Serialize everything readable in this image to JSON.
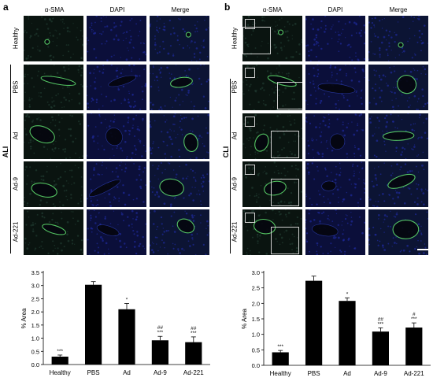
{
  "panels": [
    {
      "letter": "a",
      "columns": [
        "α-SMA",
        "DAPI",
        "Merge"
      ],
      "group_label": "ALI",
      "rows": [
        "Healthy",
        "PBS",
        "Ad",
        "Ad-9",
        "Ad-221"
      ]
    },
    {
      "letter": "b",
      "columns": [
        "α-SMA",
        "DAPI",
        "Merge"
      ],
      "group_label": "CLI",
      "rows": [
        "Healthy",
        "PBS",
        "Ad",
        "Ad-9",
        "Ad-221"
      ]
    }
  ],
  "colors": {
    "tile_dark": "#08081e",
    "dapi_blue": "#1e2a9a",
    "sma_green": "#5cd66a",
    "bar": "#000000"
  },
  "chart_data": [
    {
      "type": "bar",
      "categories": [
        "Healthy",
        "PBS",
        "Ad",
        "Ad-9",
        "Ad-221"
      ],
      "values": [
        0.3,
        3.03,
        2.1,
        0.92,
        0.85
      ],
      "errors": [
        0.06,
        0.12,
        0.22,
        0.15,
        0.2
      ],
      "annotations": [
        [
          "***"
        ],
        [],
        [
          "*"
        ],
        [
          "##",
          "***"
        ],
        [
          "##",
          "***"
        ]
      ],
      "ylabel": "% Area",
      "ylim": [
        0,
        3.5
      ],
      "yticks": [
        "0.0",
        "0.5",
        "1.0",
        "1.5",
        "2.0",
        "2.5",
        "3.0",
        "3.5"
      ]
    },
    {
      "type": "bar",
      "categories": [
        "Healthy",
        "PBS",
        "Ad",
        "Ad-9",
        "Ad-221"
      ],
      "values": [
        0.42,
        2.73,
        2.08,
        1.09,
        1.22
      ],
      "errors": [
        0.06,
        0.15,
        0.1,
        0.12,
        0.15
      ],
      "annotations": [
        [
          "***"
        ],
        [],
        [
          "*"
        ],
        [
          "##",
          "***"
        ],
        [
          "#",
          "***"
        ]
      ],
      "ylabel": "% Area",
      "ylim": [
        0,
        3.0
      ],
      "yticks": [
        "0.0",
        "0.5",
        "1.0",
        "1.5",
        "2.0",
        "2.5",
        "3.0"
      ]
    }
  ]
}
